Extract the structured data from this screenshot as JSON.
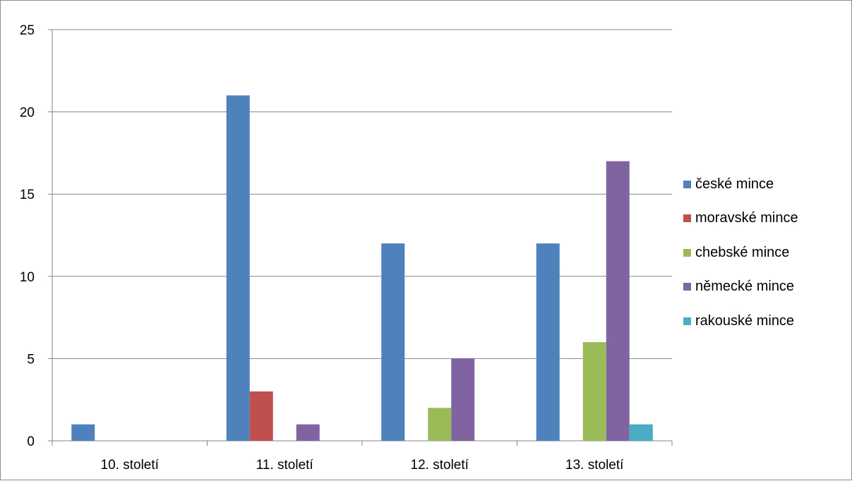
{
  "chart_data": {
    "type": "bar",
    "categories": [
      "10. století",
      "11. století",
      "12. století",
      "13. století"
    ],
    "series": [
      {
        "name": "české mince",
        "color": "#4f81bd",
        "values": [
          1,
          21,
          12,
          12
        ]
      },
      {
        "name": "moravské mince",
        "color": "#c0504d",
        "values": [
          0,
          3,
          0,
          0
        ]
      },
      {
        "name": "chebské mince",
        "color": "#9bbb59",
        "values": [
          0,
          0,
          2,
          6
        ]
      },
      {
        "name": "německé mince",
        "color": "#8064a2",
        "values": [
          0,
          1,
          5,
          17
        ]
      },
      {
        "name": "rakouské mince",
        "color": "#4bacc6",
        "values": [
          0,
          0,
          0,
          1
        ]
      }
    ],
    "ylim": [
      0,
      25
    ],
    "yticks": [
      0,
      5,
      10,
      15,
      20,
      25
    ],
    "grid": true,
    "legend_position": "right"
  }
}
